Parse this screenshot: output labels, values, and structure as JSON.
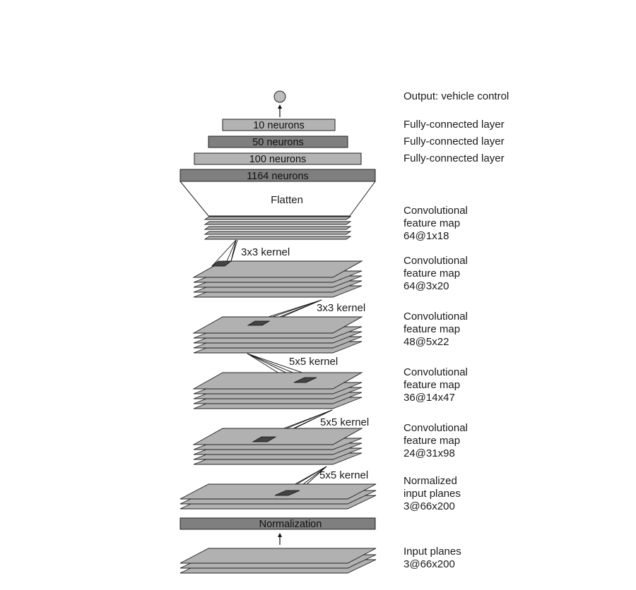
{
  "colors": {
    "box_light": "#b3b3b3",
    "box_dark": "#7f7f7f",
    "plane": "#b1b1b1",
    "patch": "#444444",
    "output_node": "#bdbdbd"
  },
  "output_label": "Output: vehicle control",
  "dense_layers": [
    {
      "label": "10 neurons",
      "side_label": "Fully-connected layer"
    },
    {
      "label": "50 neurons",
      "side_label": "Fully-connected layer"
    },
    {
      "label": "100 neurons",
      "side_label": "Fully-connected layer"
    },
    {
      "label": "1164 neurons",
      "side_label": ""
    }
  ],
  "flatten_label": "Flatten",
  "feature_maps": [
    {
      "lines": [
        "Convolutional",
        "feature map",
        "64@1x18"
      ]
    },
    {
      "lines": [
        "Convolutional",
        "feature map",
        "64@3x20"
      ]
    },
    {
      "lines": [
        "Convolutional",
        "feature map",
        "48@5x22"
      ]
    },
    {
      "lines": [
        "Convolutional",
        "feature map",
        "36@14x47"
      ]
    },
    {
      "lines": [
        "Convolutional",
        "feature map",
        "24@31x98"
      ]
    },
    {
      "lines": [
        "Normalized",
        "input planes",
        "3@66x200"
      ]
    }
  ],
  "kernels": [
    "3x3 kernel",
    "3x3 kernel",
    "5x5 kernel",
    "5x5 kernel",
    "5x5 kernel"
  ],
  "normalization_label": "Normalization",
  "input_label": {
    "lines": [
      "Input planes",
      "3@66x200"
    ]
  }
}
